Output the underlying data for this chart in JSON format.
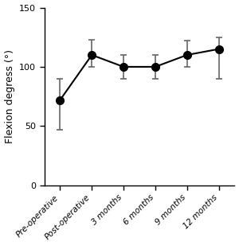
{
  "categories": [
    "Pre-operative",
    "Post-operative",
    "3 months",
    "6 months",
    "9 months",
    "12 months"
  ],
  "medians": [
    72,
    110,
    100,
    100,
    110,
    115
  ],
  "lower_errors": [
    25,
    10,
    10,
    10,
    10,
    25
  ],
  "upper_errors": [
    18,
    13,
    10,
    10,
    12,
    10
  ],
  "ylabel": "Flexion degress (°)",
  "ylim": [
    0,
    150
  ],
  "yticks": [
    0,
    50,
    100,
    150
  ],
  "line_color": "#000000",
  "marker_color": "#000000",
  "error_color": "#666666",
  "background_color": "#ffffff",
  "marker_size": 7,
  "line_width": 1.5,
  "capsize": 3,
  "figsize": [
    3.0,
    3.09
  ],
  "dpi": 100
}
